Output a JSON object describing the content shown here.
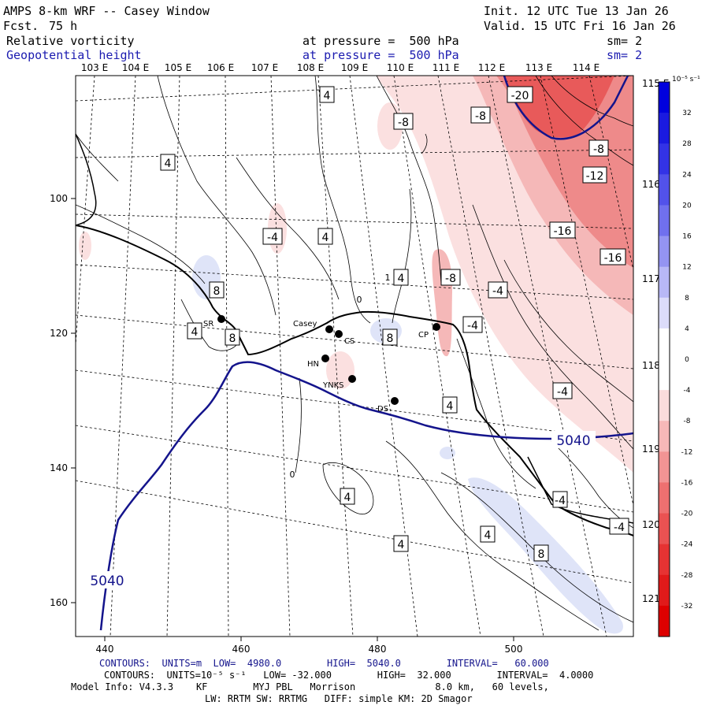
{
  "header": {
    "title": "AMPS 8-km WRF -- Casey Window",
    "fcst_label": "Fcst.",
    "fcst_value": "75 h",
    "init": "Init. 12 UTC Tue 13 Jan 26",
    "valid": "Valid. 15 UTC Fri 16 Jan 26",
    "field1_name": "Relative vorticity",
    "field1_pressure": "at pressure =  500 hPa",
    "field1_sm": "sm= 2",
    "field2_name": "Geopotential height",
    "field2_pressure": "at pressure =  500 hPa",
    "field2_sm": "sm= 2"
  },
  "colors": {
    "height_contour": "#14148c",
    "text_blue": "#1b1bb0",
    "neg_light": "#fbe0e0",
    "neg_mid": "#f5b8b8",
    "neg_strong": "#ee8a8a",
    "neg_deep": "#e85a5a",
    "pos_light": "#dfe4f8"
  },
  "longitude_labels": [
    "103 E",
    "104 E",
    "105 E",
    "106 E",
    "107 E",
    "108 E",
    "109 E",
    "110 E",
    "111 E",
    "112 E",
    "113 E",
    "114 E"
  ],
  "right_lon_labels": [
    "115 E",
    "116 E",
    "117 E",
    "118 E",
    "119 E",
    "120 E",
    "121 E"
  ],
  "x_ticks": [
    "440",
    "460",
    "480",
    "500"
  ],
  "y_ticks": [
    "100",
    "120",
    "140",
    "160"
  ],
  "colorbar": {
    "unit": "10⁻⁵ s⁻¹",
    "labels": [
      "32",
      "28",
      "24",
      "20",
      "16",
      "12",
      "8",
      "4",
      "0",
      "-4",
      "-8",
      "-12",
      "-16",
      "-20",
      "-24",
      "-28",
      "-32"
    ],
    "colors": [
      "#0000dd",
      "#1a1ae0",
      "#3333e6",
      "#5252ea",
      "#7070ee",
      "#9494f2",
      "#b8b8f6",
      "#dcdcfa",
      "#ffffff",
      "#ffffff",
      "#fadcdc",
      "#f6b8b8",
      "#f29494",
      "#ee7070",
      "#ea5252",
      "#e63333",
      "#e01a1a",
      "#dd0000"
    ]
  },
  "stations": [
    {
      "name": "SR"
    },
    {
      "name": "Casey"
    },
    {
      "name": "CS"
    },
    {
      "name": "HN"
    },
    {
      "name": "YNKS"
    },
    {
      "name": "DS"
    },
    {
      "name": "CP"
    }
  ],
  "contour_labels": {
    "vort": [
      "4",
      "4",
      "-4",
      "4",
      "8",
      "8",
      "4",
      "8",
      "4",
      "-8",
      "-8",
      "-8",
      "-4",
      "-4",
      "-12",
      "-8",
      "-16",
      "-16",
      "-20",
      "-4",
      "4",
      "4",
      "4",
      "4",
      "8",
      "-4",
      "-4",
      "4",
      "1",
      "0",
      "0"
    ],
    "height": [
      "5040",
      "5040"
    ]
  },
  "footer": {
    "line1": "CONTOURS:  UNITS=m  LOW=  4980.0        HIGH=  5040.0        INTERVAL=   60.000",
    "line2": "CONTOURS:  UNITS=10⁻⁵ s⁻¹   LOW= -32.000        HIGH=  32.000        INTERVAL=  4.0000",
    "line3": "Model Info: V4.3.3    KF        MYJ PBL   Morrison              8.0 km,   60 levels,",
    "line4": "LW: RRTM SW: RRTMG   DIFF: simple KM: 2D Smagor"
  }
}
